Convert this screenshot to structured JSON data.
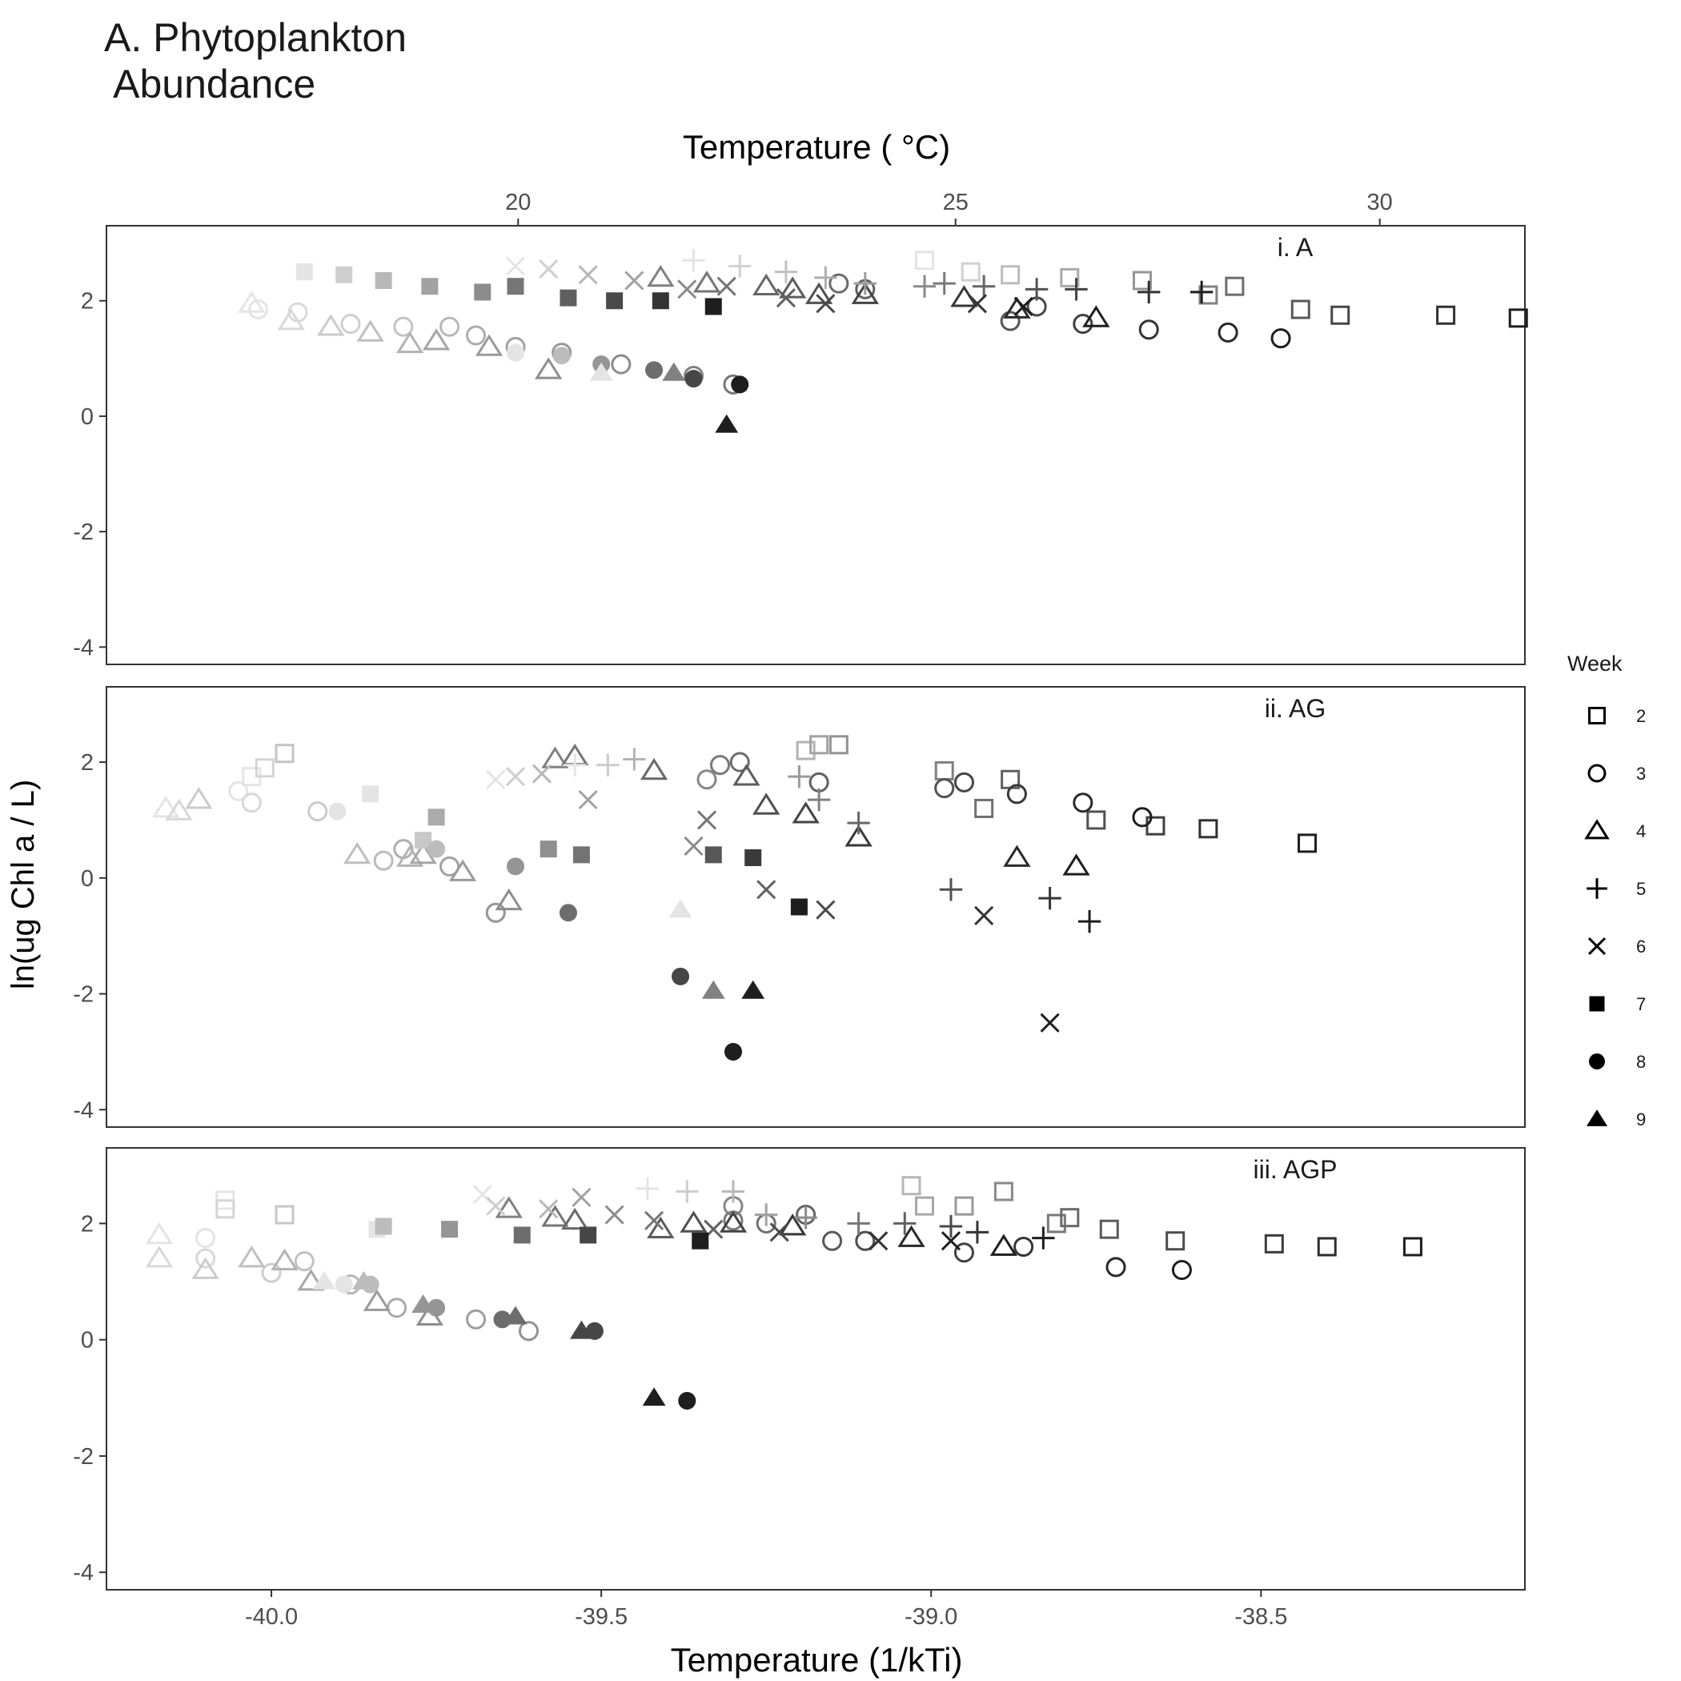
{
  "figure": {
    "title_line1": "A. Phytoplankton",
    "title_line2": " Abundance"
  },
  "chart_data": {
    "type": "scatter",
    "title": "A. Phytoplankton\n Abundance",
    "xlabel": "Temperature (1/kTi)",
    "x2label": "Temperature ( °C)",
    "ylabel": "ln(ug Chl a / L)",
    "xlim": [
      -40.25,
      -38.1
    ],
    "ylim": [
      -4.3,
      3.3
    ],
    "xticks": [
      -40.0,
      -39.5,
      -39.0,
      -38.5
    ],
    "xtick_labels": [
      "-40.0",
      "-39.5",
      "-39.0",
      "-38.5"
    ],
    "x2ticks": [
      20,
      25,
      30
    ],
    "x2tick_labels": [
      "20",
      "25",
      "30"
    ],
    "x2_axis_positions": [
      -39.626,
      -38.963,
      -38.32
    ],
    "yticks": [
      -4,
      -2,
      0,
      2
    ],
    "ytick_labels": [
      "-4",
      "-2",
      "0",
      "2"
    ],
    "grid": false,
    "legend": {
      "title": "Week",
      "placement": "right",
      "entries": [
        {
          "week": "2",
          "shape": "open-square"
        },
        {
          "week": "3",
          "shape": "open-circle"
        },
        {
          "week": "4",
          "shape": "open-triangle"
        },
        {
          "week": "5",
          "shape": "plus"
        },
        {
          "week": "6",
          "shape": "cross"
        },
        {
          "week": "7",
          "shape": "filled-square"
        },
        {
          "week": "8",
          "shape": "filled-circle"
        },
        {
          "week": "9",
          "shape": "filled-triangle"
        }
      ]
    },
    "encoding_note": "darker symbols = higher temperature within each week's series",
    "panels": [
      {
        "label": "i. A",
        "series": [
          {
            "week": "2",
            "x": [
              -39.01,
              -38.94,
              -38.88,
              -38.79,
              -38.68,
              -38.58,
              -38.54,
              -38.44,
              -38.38,
              -38.22,
              -38.11
            ],
            "y": [
              2.7,
              2.5,
              2.45,
              2.4,
              2.35,
              2.1,
              2.25,
              1.85,
              1.75,
              1.75,
              1.7
            ]
          },
          {
            "week": "3",
            "x": [
              -40.02,
              -39.96,
              -39.88,
              -39.8,
              -39.73,
              -39.69,
              -39.63,
              -39.56,
              -39.47,
              -39.36,
              -39.3,
              -39.14,
              -39.1,
              -38.88,
              -38.84,
              -38.77,
              -38.67,
              -38.55,
              -38.47
            ],
            "y": [
              1.85,
              1.8,
              1.6,
              1.55,
              1.55,
              1.4,
              1.2,
              1.1,
              0.9,
              0.7,
              0.55,
              2.3,
              2.2,
              1.65,
              1.9,
              1.6,
              1.5,
              1.45,
              1.35
            ]
          },
          {
            "week": "4",
            "x": [
              -40.03,
              -39.97,
              -39.91,
              -39.85,
              -39.79,
              -39.75,
              -39.67,
              -39.58,
              -39.41,
              -39.34,
              -39.25,
              -39.21,
              -39.17,
              -39.1,
              -38.95,
              -38.87,
              -38.75
            ],
            "y": [
              1.95,
              1.65,
              1.55,
              1.45,
              1.25,
              1.3,
              1.2,
              0.8,
              2.4,
              2.3,
              2.25,
              2.2,
              2.1,
              2.1,
              2.05,
              1.85,
              1.7
            ]
          },
          {
            "week": "5",
            "x": [
              -39.36,
              -39.29,
              -39.22,
              -39.16,
              -39.1,
              -39.01,
              -38.98,
              -38.92,
              -38.84,
              -38.78,
              -38.67,
              -38.59
            ],
            "y": [
              2.7,
              2.6,
              2.5,
              2.4,
              2.3,
              2.25,
              2.3,
              2.25,
              2.2,
              2.2,
              2.15,
              2.15
            ]
          },
          {
            "week": "6",
            "x": [
              -39.63,
              -39.58,
              -39.52,
              -39.45,
              -39.37,
              -39.31,
              -39.22,
              -39.16,
              -38.93,
              -38.86
            ],
            "y": [
              2.6,
              2.55,
              2.45,
              2.35,
              2.2,
              2.25,
              2.05,
              1.95,
              1.95,
              1.9
            ]
          },
          {
            "week": "7",
            "x": [
              -39.95,
              -39.89,
              -39.83,
              -39.76,
              -39.68,
              -39.63,
              -39.55,
              -39.48,
              -39.41,
              -39.33
            ],
            "y": [
              2.5,
              2.45,
              2.35,
              2.25,
              2.15,
              2.25,
              2.05,
              2.0,
              2.0,
              1.9
            ]
          },
          {
            "week": "8",
            "x": [
              -39.63,
              -39.56,
              -39.5,
              -39.42,
              -39.36,
              -39.29
            ],
            "y": [
              1.1,
              1.05,
              0.9,
              0.8,
              0.65,
              0.55
            ]
          },
          {
            "week": "9",
            "x": [
              -39.5,
              -39.39,
              -39.31
            ],
            "y": [
              0.75,
              0.75,
              -0.15
            ]
          }
        ]
      },
      {
        "label": "ii. AG",
        "series": [
          {
            "week": "2",
            "x": [
              -40.03,
              -40.01,
              -39.98,
              -39.19,
              -39.17,
              -39.14,
              -38.98,
              -38.92,
              -38.88,
              -38.75,
              -38.66,
              -38.58,
              -38.43
            ],
            "y": [
              1.75,
              1.9,
              2.15,
              2.2,
              2.3,
              2.3,
              1.85,
              1.2,
              1.7,
              1.0,
              0.9,
              0.85,
              0.6
            ]
          },
          {
            "week": "3",
            "x": [
              -40.05,
              -40.03,
              -39.93,
              -39.83,
              -39.8,
              -39.73,
              -39.66,
              -39.34,
              -39.32,
              -39.29,
              -39.17,
              -38.98,
              -38.95,
              -38.87,
              -38.77,
              -38.68
            ],
            "y": [
              1.5,
              1.3,
              1.15,
              0.3,
              0.5,
              0.2,
              -0.6,
              1.7,
              1.95,
              2.0,
              1.65,
              1.55,
              1.65,
              1.45,
              1.3,
              1.05
            ]
          },
          {
            "week": "4",
            "x": [
              -40.16,
              -40.14,
              -40.11,
              -39.87,
              -39.79,
              -39.77,
              -39.71,
              -39.64,
              -39.57,
              -39.54,
              -39.42,
              -39.28,
              -39.25,
              -39.19,
              -39.11,
              -38.87,
              -38.78
            ],
            "y": [
              1.2,
              1.15,
              1.35,
              0.4,
              0.35,
              0.4,
              0.1,
              -0.4,
              2.05,
              2.1,
              1.85,
              1.75,
              1.25,
              1.1,
              0.7,
              0.35,
              0.2
            ]
          },
          {
            "week": "5",
            "x": [
              -39.54,
              -39.49,
              -39.45,
              -39.2,
              -39.17,
              -39.11,
              -38.97,
              -38.82,
              -38.76
            ],
            "y": [
              1.95,
              1.95,
              2.05,
              1.75,
              1.35,
              0.95,
              -0.2,
              -0.35,
              -0.75
            ]
          },
          {
            "week": "6",
            "x": [
              -39.66,
              -39.63,
              -39.59,
              -39.52,
              -39.36,
              -39.34,
              -39.25,
              -39.16,
              -38.92,
              -38.82
            ],
            "y": [
              1.7,
              1.75,
              1.8,
              1.35,
              0.55,
              1.0,
              -0.2,
              -0.55,
              -0.65,
              -2.5
            ]
          },
          {
            "week": "7",
            "x": [
              -39.85,
              -39.77,
              -39.75,
              -39.58,
              -39.53,
              -39.33,
              -39.27,
              -39.2
            ],
            "y": [
              1.45,
              0.65,
              1.05,
              0.5,
              0.4,
              0.4,
              0.35,
              -0.5
            ]
          },
          {
            "week": "8",
            "x": [
              -39.9,
              -39.75,
              -39.63,
              -39.55,
              -39.38,
              -39.3
            ],
            "y": [
              1.15,
              0.5,
              0.2,
              -0.6,
              -1.7,
              -3.0
            ]
          },
          {
            "week": "9",
            "x": [
              -39.38,
              -39.33,
              -39.27
            ],
            "y": [
              -0.55,
              -1.95,
              -1.95
            ]
          }
        ]
      },
      {
        "label": "iii. AGP",
        "series": [
          {
            "week": "2",
            "x": [
              -40.07,
              -40.07,
              -39.98,
              -39.03,
              -39.01,
              -38.95,
              -38.89,
              -38.81,
              -38.79,
              -38.73,
              -38.63,
              -38.48,
              -38.4,
              -38.27
            ],
            "y": [
              2.4,
              2.25,
              2.15,
              2.65,
              2.3,
              2.3,
              2.55,
              2.0,
              2.1,
              1.9,
              1.7,
              1.65,
              1.6,
              1.6
            ]
          },
          {
            "week": "3",
            "x": [
              -40.1,
              -40.1,
              -40.0,
              -39.95,
              -39.88,
              -39.81,
              -39.69,
              -39.61,
              -39.3,
              -39.3,
              -39.25,
              -39.19,
              -39.15,
              -39.1,
              -38.95,
              -38.86,
              -38.72,
              -38.62
            ],
            "y": [
              1.75,
              1.4,
              1.15,
              1.35,
              0.95,
              0.55,
              0.35,
              0.15,
              2.3,
              2.05,
              2.0,
              2.15,
              1.7,
              1.7,
              1.5,
              1.6,
              1.25,
              1.2
            ]
          },
          {
            "week": "4",
            "x": [
              -40.17,
              -40.17,
              -40.1,
              -40.03,
              -39.98,
              -39.94,
              -39.84,
              -39.76,
              -39.64,
              -39.57,
              -39.54,
              -39.41,
              -39.36,
              -39.3,
              -39.21,
              -39.03,
              -38.89
            ],
            "y": [
              1.8,
              1.4,
              1.2,
              1.4,
              1.35,
              1.0,
              0.65,
              0.4,
              2.25,
              2.1,
              2.05,
              1.9,
              2.0,
              2.0,
              1.95,
              1.75,
              1.6
            ]
          },
          {
            "week": "5",
            "x": [
              -39.43,
              -39.37,
              -39.3,
              -39.25,
              -39.19,
              -39.11,
              -39.04,
              -38.97,
              -38.93,
              -38.83
            ],
            "y": [
              2.6,
              2.55,
              2.55,
              2.15,
              2.1,
              2.0,
              2.0,
              1.95,
              1.85,
              1.75
            ]
          },
          {
            "week": "6",
            "x": [
              -39.68,
              -39.66,
              -39.58,
              -39.53,
              -39.48,
              -39.42,
              -39.33,
              -39.23,
              -39.08,
              -38.97
            ],
            "y": [
              2.5,
              2.3,
              2.25,
              2.45,
              2.15,
              2.05,
              1.9,
              1.85,
              1.7,
              1.7
            ]
          },
          {
            "week": "7",
            "x": [
              -39.84,
              -39.83,
              -39.73,
              -39.62,
              -39.52,
              -39.35
            ],
            "y": [
              1.9,
              1.95,
              1.9,
              1.8,
              1.8,
              1.7
            ]
          },
          {
            "week": "8",
            "x": [
              -39.89,
              -39.85,
              -39.75,
              -39.65,
              -39.51,
              -39.37
            ],
            "y": [
              0.95,
              0.95,
              0.55,
              0.35,
              0.15,
              -1.05
            ]
          },
          {
            "week": "9",
            "x": [
              -39.92,
              -39.86,
              -39.77,
              -39.63,
              -39.53,
              -39.42
            ],
            "y": [
              1.0,
              1.0,
              0.6,
              0.4,
              0.15,
              -1.0
            ]
          }
        ]
      }
    ]
  }
}
